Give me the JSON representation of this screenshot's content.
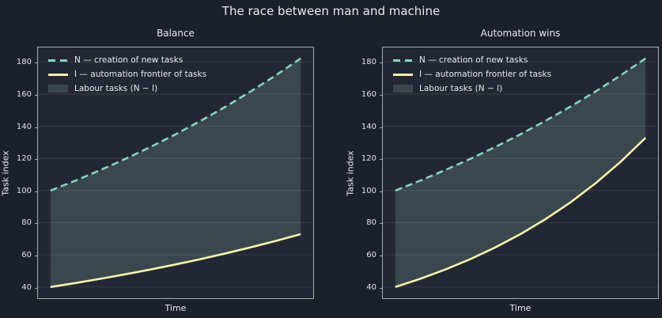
{
  "figure": {
    "suptitle": "The race between man and machine",
    "background": "#1c202a",
    "axes_background": "#222733",
    "text_color": "#e7e9ec",
    "tick_text_color": "#dfe2e6",
    "spine_color": "#a5aab4",
    "grid_color": "rgba(255,255,255,0.10)"
  },
  "legend": {
    "entries": [
      {
        "label": "N — creation of new tasks",
        "swatch": "dashed-line",
        "color": "#84d4c1"
      },
      {
        "label": "I — automation frontier of tasks",
        "swatch": "solid-line",
        "color": "#f6f3a6"
      },
      {
        "label": "Labour tasks (N − I)",
        "swatch": "patch",
        "color": "#3a474e"
      }
    ]
  },
  "chart_data": [
    {
      "type": "area",
      "title": "Balance",
      "xlabel": "Time",
      "ylabel": "Task index",
      "x": [
        0,
        1,
        2,
        3,
        4,
        5,
        6,
        7,
        8,
        9,
        10
      ],
      "series": [
        {
          "name": "N — creation of new tasks",
          "style": "dashed",
          "color": "#84d4c1",
          "values": [
            100,
            106.18,
            112.75,
            119.72,
            127.12,
            134.99,
            143.33,
            152.2,
            161.61,
            171.6,
            182.21
          ]
        },
        {
          "name": "I — automation frontier of tasks",
          "style": "solid",
          "color": "#f6f3a6",
          "values": [
            40,
            42.47,
            45.1,
            47.89,
            50.85,
            54.0,
            57.33,
            60.88,
            64.64,
            68.64,
            72.88
          ]
        }
      ],
      "fill_between": {
        "upper": "N",
        "lower": "I",
        "label": "Labour tasks (N − I)",
        "color": "#3a474e"
      },
      "yticks": [
        40,
        60,
        80,
        100,
        120,
        140,
        160,
        180
      ],
      "ylim": [
        33,
        189
      ],
      "xlim": [
        -0.5,
        10.5
      ],
      "grid": "horizontal",
      "legend_position": "upper left"
    },
    {
      "type": "area",
      "title": "Automation wins",
      "xlabel": "Time",
      "ylabel": "Task index",
      "x": [
        0,
        1,
        2,
        3,
        4,
        5,
        6,
        7,
        8,
        9,
        10
      ],
      "series": [
        {
          "name": "N — creation of new tasks",
          "style": "dashed",
          "color": "#84d4c1",
          "values": [
            100,
            106.18,
            112.75,
            119.72,
            127.12,
            134.99,
            143.33,
            152.2,
            161.61,
            171.6,
            182.21
          ]
        },
        {
          "name": "I — automation frontier of tasks",
          "style": "solid",
          "color": "#f6f3a6",
          "values": [
            40,
            45.1,
            50.85,
            57.33,
            64.64,
            72.88,
            82.17,
            92.65,
            104.46,
            117.79,
            132.81
          ]
        }
      ],
      "fill_between": {
        "upper": "N",
        "lower": "I",
        "label": "Labour tasks (N − I)",
        "color": "#3a474e"
      },
      "yticks": [
        40,
        60,
        80,
        100,
        120,
        140,
        160,
        180
      ],
      "ylim": [
        33,
        189
      ],
      "xlim": [
        -0.5,
        10.5
      ],
      "grid": "horizontal",
      "legend_position": "upper left"
    }
  ]
}
